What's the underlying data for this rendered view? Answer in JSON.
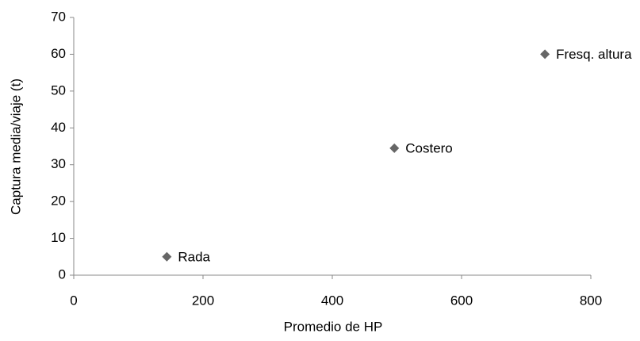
{
  "chart_data": {
    "type": "scatter",
    "x_label": "Promedio de HP",
    "y_label": "Captura media/viaje (t)",
    "x": [
      144,
      496,
      729
    ],
    "values": [
      5,
      34.5,
      60
    ],
    "point_labels": [
      "Rada",
      "Costero",
      "Fresq. altura"
    ],
    "color": "#666666",
    "xlim": [
      0,
      800
    ],
    "xticks": [
      0,
      200,
      400,
      600,
      800
    ],
    "ylim": [
      0,
      70
    ],
    "yticks": [
      0,
      10,
      20,
      30,
      40,
      50,
      60,
      70
    ],
    "grid": false
  }
}
